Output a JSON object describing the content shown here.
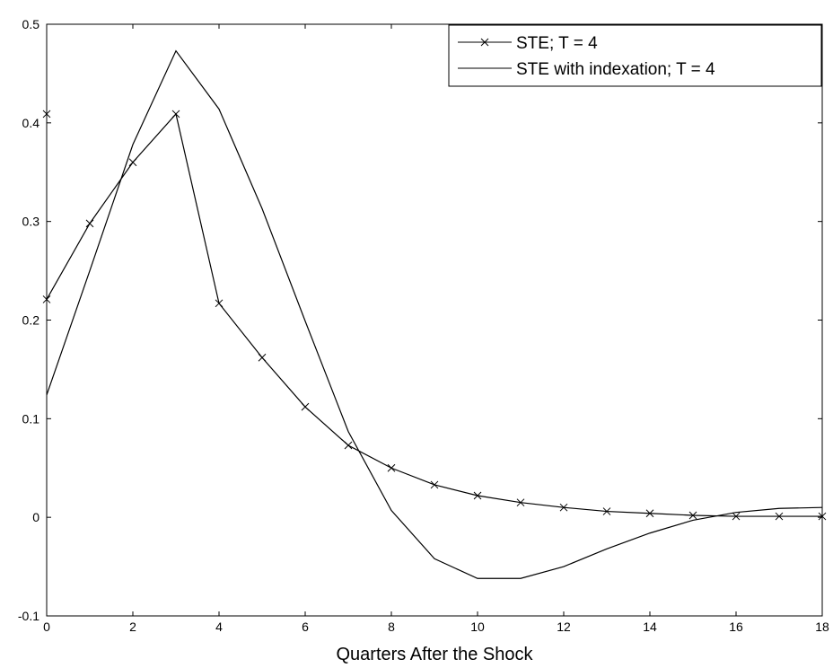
{
  "chart_data": {
    "type": "line",
    "xlabel": "Quarters After the Shock",
    "ylabel": "",
    "xlim": [
      0,
      18
    ],
    "ylim": [
      -0.1,
      0.5
    ],
    "xticks": [
      "0",
      "2",
      "4",
      "6",
      "8",
      "10",
      "12",
      "14",
      "16",
      "18"
    ],
    "yticks": [
      "-0.1",
      "0",
      "0.1",
      "0.2",
      "0.3",
      "0.4",
      "0.5"
    ],
    "grid": false,
    "legend_position": "top-right",
    "series": [
      {
        "name": "STE; T = 4",
        "marker": "x",
        "color": "#000000",
        "x": [
          0,
          1,
          2,
          3,
          4,
          5,
          6,
          7,
          8,
          9,
          10,
          11,
          12,
          13,
          14,
          15,
          16,
          17,
          18
        ],
        "y": [
          0.221,
          0.298,
          0.36,
          0.409,
          0.217,
          0.162,
          0.112,
          0.073,
          0.05,
          0.033,
          0.022,
          0.015,
          0.01,
          0.006,
          0.004,
          0.002,
          0.001,
          0.001,
          0.001
        ]
      },
      {
        "name": "STE with indexation; T = 4",
        "marker": "none",
        "color": "#000000",
        "x": [
          0,
          1,
          2,
          3,
          4,
          5,
          6,
          7,
          8,
          9,
          10,
          11,
          12,
          13,
          14,
          15,
          16,
          17,
          18
        ],
        "y": [
          0.124,
          0.25,
          0.378,
          0.473,
          0.414,
          0.313,
          0.199,
          0.087,
          0.007,
          -0.042,
          -0.062,
          -0.062,
          -0.05,
          -0.032,
          -0.016,
          -0.003,
          0.005,
          0.009,
          0.01
        ]
      }
    ],
    "extra_marker": {
      "x": 0,
      "y": 0.409,
      "marker": "x"
    }
  }
}
